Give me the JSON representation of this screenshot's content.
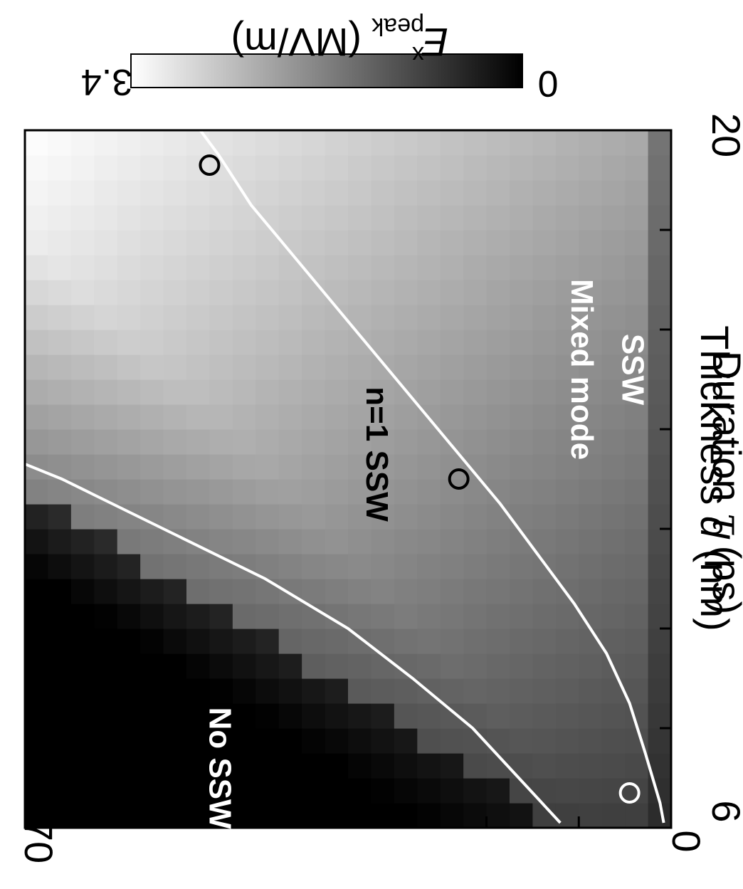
{
  "chart_data": {
    "type": "heatmap",
    "orientation": "rotated 90 degrees clockwise",
    "x_axis": {
      "label_text": "Thickness ",
      "label_symbol": "d",
      "label_unit": " (nm)",
      "range": [
        6,
        20
      ],
      "tick_labels": [
        "6",
        "20"
      ],
      "minor_ticks": [
        8,
        10,
        12,
        14,
        16,
        18
      ]
    },
    "y_axis": {
      "label_text": "Duration ",
      "label_symbol": "τ",
      "label_unit": " (ps)",
      "range": [
        0,
        70
      ],
      "tick_labels": [
        "0",
        "70"
      ],
      "minor_ticks": [
        10,
        20,
        30,
        40,
        50,
        60
      ]
    },
    "colorbar": {
      "label_symbol": "E",
      "label_superscript": "x",
      "label_subscript": "peak",
      "label_unit": " (MV/m)",
      "min": 0,
      "max": 3.4,
      "min_label": "0",
      "max_label": "3.4",
      "colormap": "grayscale, black = 0, white = 3.4"
    },
    "regions": [
      {
        "label": "No SSW",
        "d": 7.2,
        "tau": 50
      },
      {
        "label": "n=1 SSW",
        "d": 13.5,
        "tau": 33
      },
      {
        "label": "Mixed mode",
        "d": 15.2,
        "tau": 10.8
      },
      {
        "label": "SSW",
        "d": 15.2,
        "tau": 5.3
      }
    ],
    "boundaries": [
      {
        "name": "No SSW / n=1 SSW",
        "points": [
          [
            6.1,
            12
          ],
          [
            7,
            16.5
          ],
          [
            8,
            21.5
          ],
          [
            9,
            28
          ],
          [
            10,
            35
          ],
          [
            11,
            44
          ],
          [
            12,
            55
          ],
          [
            13,
            66
          ],
          [
            13.3,
            70
          ]
        ]
      },
      {
        "name": "n=1 SSW / Mixed mode",
        "points": [
          [
            6.1,
            0.8
          ],
          [
            6.5,
            1.2
          ],
          [
            7.5,
            2.8
          ],
          [
            8.5,
            4.5
          ],
          [
            9.5,
            7
          ],
          [
            10.5,
            10.5
          ],
          [
            11.5,
            14.5
          ],
          [
            12.5,
            18.5
          ],
          [
            13.5,
            23
          ],
          [
            14.5,
            27.5
          ],
          [
            15.5,
            32
          ],
          [
            16.5,
            36.5
          ],
          [
            17.5,
            41
          ],
          [
            18.5,
            45.5
          ],
          [
            19.5,
            49
          ],
          [
            20,
            51
          ]
        ]
      }
    ],
    "markers": [
      {
        "d": 6.7,
        "tau": 4.5
      },
      {
        "d": 13,
        "tau": 23
      },
      {
        "d": 19.3,
        "tau": 50
      }
    ],
    "grid": false,
    "legend": "colorbar at top-right"
  }
}
